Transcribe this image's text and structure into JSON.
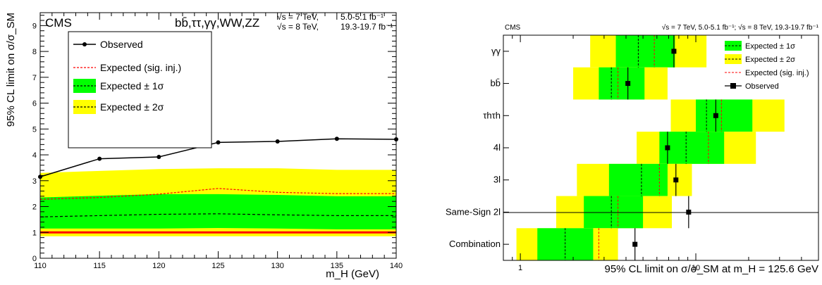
{
  "chart_data": [
    {
      "type": "line",
      "experiment": "CMS",
      "title": "bb̄,ττ,γγ,WW,ZZ",
      "energy_label_1": "√s = 7 TeV,",
      "lumi_label_1": "5.0-5.1 fb⁻¹",
      "energy_label_2": "√s = 8 TeV,",
      "lumi_label_2": "19.3-19.7 fb⁻¹",
      "xlabel": "m_H (GeV)",
      "ylabel": "95% CL limit on σ/σ_SM",
      "xlim": [
        110,
        140
      ],
      "ylim": [
        0,
        9.5
      ],
      "x_ticks": [
        "110",
        "115",
        "120",
        "125",
        "130",
        "135",
        "140"
      ],
      "y_ticks": [
        "0",
        "1",
        "2",
        "3",
        "4",
        "5",
        "6",
        "7",
        "8",
        "9"
      ],
      "x": [
        110,
        115,
        120,
        125,
        130,
        135,
        140
      ],
      "series": [
        {
          "name": "Observed",
          "values": [
            3.15,
            3.85,
            3.92,
            4.48,
            4.52,
            4.62,
            4.6
          ],
          "color": "#000000"
        },
        {
          "name": "Expected (sig. inj.)",
          "values": [
            2.28,
            2.35,
            2.48,
            2.7,
            2.55,
            2.5,
            2.5
          ],
          "color": "#ff0000"
        },
        {
          "name": "Expected",
          "values": [
            1.6,
            1.65,
            1.7,
            1.72,
            1.68,
            1.65,
            1.65
          ],
          "color": "#000000"
        }
      ],
      "band_1sigma": {
        "label": "Expected ± 1σ",
        "low": [
          1.15,
          1.15,
          1.15,
          1.17,
          1.15,
          1.12,
          1.12
        ],
        "high": [
          2.35,
          2.42,
          2.48,
          2.48,
          2.45,
          2.4,
          2.4
        ],
        "color": "#00ff00"
      },
      "band_2sigma": {
        "label": "Expected ± 2σ",
        "low": [
          0.85,
          0.85,
          0.85,
          0.85,
          0.85,
          0.85,
          0.85
        ],
        "high": [
          3.3,
          3.38,
          3.45,
          3.48,
          3.48,
          3.42,
          3.42
        ],
        "color": "#ffff00"
      },
      "reference_line": {
        "y": 1,
        "color": "#ff0000"
      },
      "legend_placement": "top-left"
    },
    {
      "type": "scatter",
      "experiment": "CMS",
      "energy_label": "√s = 7 TeV, 5.0-5.1 fb⁻¹; √s = 8 TeV, 19.3-19.7 fb⁻¹",
      "xlabel": "95% CL limit on σ/σ_SM at m_H = 125.6 GeV",
      "x_scale": "log",
      "xlim": [
        0.8,
        50
      ],
      "x_ticks": [
        "1",
        "10"
      ],
      "categories": [
        "γγ",
        "bb̄",
        "τhτh",
        "4l",
        "3l",
        "Same-Sign 2l",
        "Combination"
      ],
      "observed": [
        7.5,
        4.1,
        13,
        6.9,
        7.7,
        9.1,
        4.5
      ],
      "expected_sig_inj": [
        5.8,
        3.6,
        14,
        11.8,
        6.2,
        3.6,
        2.8
      ],
      "expected": [
        4.7,
        3.3,
        11.5,
        8.8,
        4.9,
        3.3,
        1.8
      ],
      "band_1sigma": [
        [
          3.5,
          7.6
        ],
        [
          2.8,
          5.1
        ],
        [
          10,
          21
        ],
        [
          6.2,
          14.5
        ],
        [
          3.2,
          6.9
        ],
        [
          2.3,
          5.0
        ],
        [
          1.25,
          2.6
        ]
      ],
      "band_2sigma": [
        [
          2.5,
          11.5
        ],
        [
          2.0,
          6.9
        ],
        [
          7.2,
          32
        ],
        [
          4.6,
          22
        ],
        [
          2.1,
          9.5
        ],
        [
          1.6,
          7.3
        ],
        [
          0.95,
          3.6
        ]
      ],
      "legend": [
        "Expected ± 1σ",
        "Expected ± 2σ",
        "Expected (sig. inj.)",
        "Observed"
      ],
      "legend_placement": "top-right",
      "colors": {
        "one_sigma": "#00ff00",
        "two_sigma": "#ffff00",
        "sig_inj": "#ff0000",
        "observed": "#000000"
      }
    }
  ]
}
